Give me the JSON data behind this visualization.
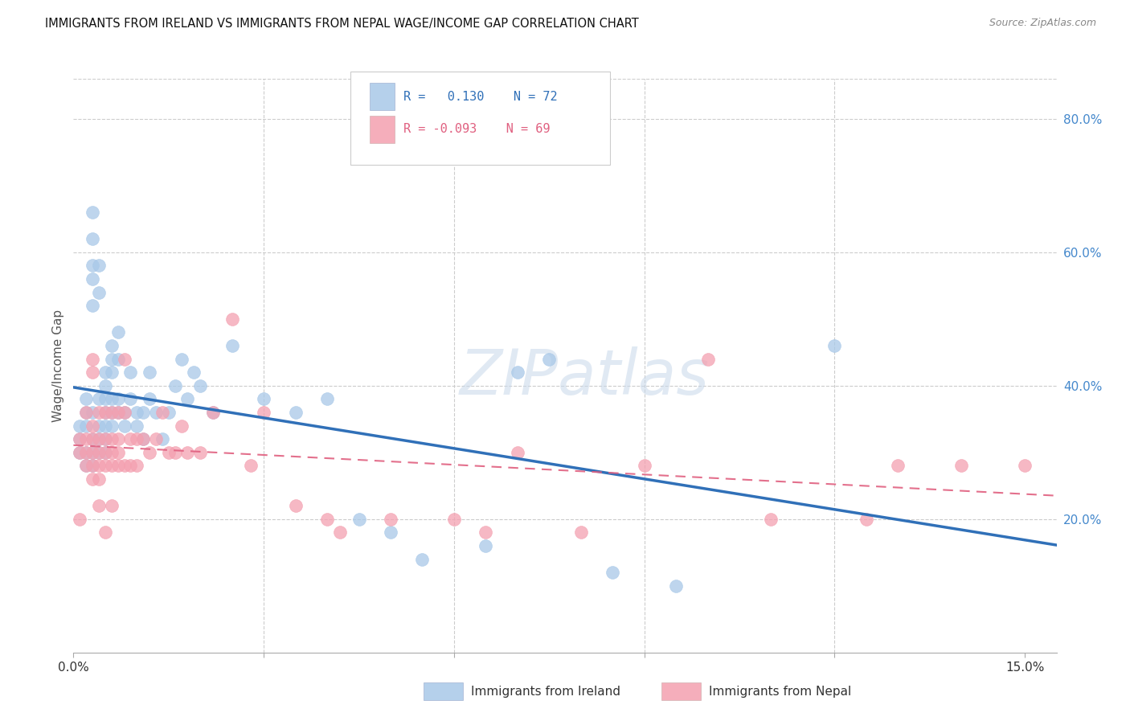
{
  "title": "IMMIGRANTS FROM IRELAND VS IMMIGRANTS FROM NEPAL WAGE/INCOME GAP CORRELATION CHART",
  "source": "Source: ZipAtlas.com",
  "ylabel": "Wage/Income Gap",
  "xlim": [
    0.0,
    0.155
  ],
  "ylim": [
    0.0,
    0.86
  ],
  "ireland_color": "#a8c8e8",
  "nepal_color": "#f4a0b0",
  "ireland_line_color": "#3070b8",
  "nepal_line_color": "#e06080",
  "background_color": "#ffffff",
  "grid_color": "#cccccc",
  "ireland_x": [
    0.001,
    0.001,
    0.001,
    0.002,
    0.002,
    0.002,
    0.002,
    0.002,
    0.003,
    0.003,
    0.003,
    0.003,
    0.003,
    0.003,
    0.003,
    0.003,
    0.003,
    0.004,
    0.004,
    0.004,
    0.004,
    0.004,
    0.004,
    0.005,
    0.005,
    0.005,
    0.005,
    0.005,
    0.005,
    0.005,
    0.006,
    0.006,
    0.006,
    0.006,
    0.006,
    0.006,
    0.007,
    0.007,
    0.007,
    0.007,
    0.008,
    0.008,
    0.009,
    0.009,
    0.01,
    0.01,
    0.011,
    0.011,
    0.012,
    0.012,
    0.013,
    0.014,
    0.015,
    0.016,
    0.017,
    0.018,
    0.019,
    0.02,
    0.022,
    0.025,
    0.03,
    0.035,
    0.04,
    0.045,
    0.05,
    0.055,
    0.065,
    0.07,
    0.075,
    0.085,
    0.095,
    0.12
  ],
  "ireland_y": [
    0.32,
    0.34,
    0.3,
    0.36,
    0.38,
    0.34,
    0.3,
    0.28,
    0.36,
    0.32,
    0.3,
    0.28,
    0.58,
    0.52,
    0.62,
    0.66,
    0.56,
    0.34,
    0.38,
    0.32,
    0.3,
    0.58,
    0.54,
    0.36,
    0.34,
    0.32,
    0.3,
    0.42,
    0.4,
    0.38,
    0.46,
    0.44,
    0.42,
    0.38,
    0.36,
    0.34,
    0.48,
    0.44,
    0.38,
    0.36,
    0.36,
    0.34,
    0.42,
    0.38,
    0.36,
    0.34,
    0.36,
    0.32,
    0.42,
    0.38,
    0.36,
    0.32,
    0.36,
    0.4,
    0.44,
    0.38,
    0.42,
    0.4,
    0.36,
    0.46,
    0.38,
    0.36,
    0.38,
    0.2,
    0.18,
    0.14,
    0.16,
    0.42,
    0.44,
    0.12,
    0.1,
    0.46
  ],
  "nepal_x": [
    0.001,
    0.001,
    0.001,
    0.002,
    0.002,
    0.002,
    0.002,
    0.003,
    0.003,
    0.003,
    0.003,
    0.003,
    0.003,
    0.003,
    0.004,
    0.004,
    0.004,
    0.004,
    0.004,
    0.004,
    0.005,
    0.005,
    0.005,
    0.005,
    0.005,
    0.006,
    0.006,
    0.006,
    0.006,
    0.006,
    0.007,
    0.007,
    0.007,
    0.007,
    0.008,
    0.008,
    0.008,
    0.009,
    0.009,
    0.01,
    0.01,
    0.011,
    0.012,
    0.013,
    0.014,
    0.015,
    0.016,
    0.017,
    0.018,
    0.02,
    0.022,
    0.025,
    0.028,
    0.03,
    0.035,
    0.04,
    0.042,
    0.05,
    0.06,
    0.065,
    0.07,
    0.08,
    0.09,
    0.1,
    0.11,
    0.125,
    0.13,
    0.14,
    0.15
  ],
  "nepal_y": [
    0.32,
    0.3,
    0.2,
    0.36,
    0.32,
    0.3,
    0.28,
    0.34,
    0.32,
    0.3,
    0.28,
    0.26,
    0.44,
    0.42,
    0.36,
    0.32,
    0.3,
    0.28,
    0.26,
    0.22,
    0.36,
    0.32,
    0.3,
    0.28,
    0.18,
    0.36,
    0.32,
    0.3,
    0.28,
    0.22,
    0.36,
    0.32,
    0.3,
    0.28,
    0.44,
    0.36,
    0.28,
    0.32,
    0.28,
    0.32,
    0.28,
    0.32,
    0.3,
    0.32,
    0.36,
    0.3,
    0.3,
    0.34,
    0.3,
    0.3,
    0.36,
    0.5,
    0.28,
    0.36,
    0.22,
    0.2,
    0.18,
    0.2,
    0.2,
    0.18,
    0.3,
    0.18,
    0.28,
    0.44,
    0.2,
    0.2,
    0.28,
    0.28,
    0.28
  ]
}
